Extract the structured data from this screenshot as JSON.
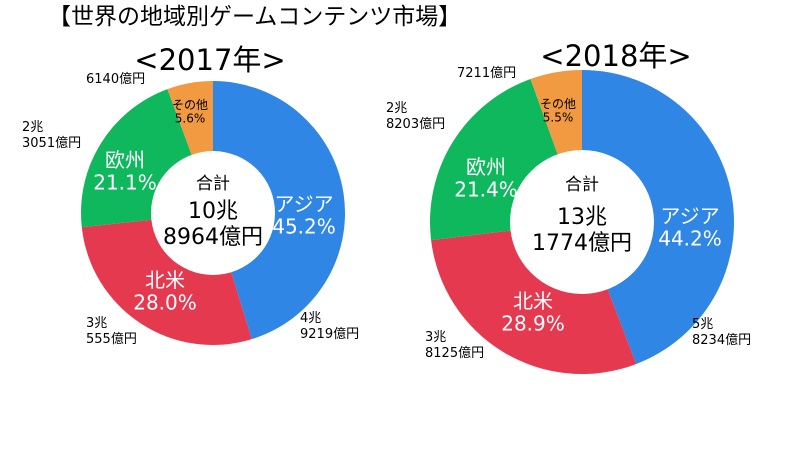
{
  "title": "【世界の地域別ゲームコンテンツ市場】",
  "colors": {
    "asia": "#2f86e4",
    "north_america": "#e53950",
    "europe": "#0fb85c",
    "other": "#f29a41",
    "hole": "#ffffff",
    "outer_label": "#000000",
    "inner_label": "#ffffff"
  },
  "chart_data": [
    {
      "type": "pie",
      "title": "<2017年>",
      "center_label": [
        "合計",
        "10兆",
        "8964億円"
      ],
      "slices": [
        {
          "key": "asia",
          "label": "アジア",
          "percent_label": "45.2%",
          "value": 45.2,
          "outer_label": [
            "4兆",
            "9219億円"
          ]
        },
        {
          "key": "north_america",
          "label": "北米",
          "percent_label": "28.0%",
          "value": 28.0,
          "outer_label": [
            "3兆",
            "555億円"
          ]
        },
        {
          "key": "europe",
          "label": "欧州",
          "percent_label": "21.1%",
          "value": 21.1,
          "outer_label": [
            "2兆",
            "3051億円"
          ]
        },
        {
          "key": "other",
          "label": "その他",
          "percent_label": "5.6%",
          "value": 5.6,
          "outer_label": [
            "6140億円"
          ]
        }
      ]
    },
    {
      "type": "pie",
      "title": "<2018年>",
      "center_label": [
        "合計",
        "13兆",
        "1774億円"
      ],
      "slices": [
        {
          "key": "asia",
          "label": "アジア",
          "percent_label": "44.2%",
          "value": 44.2,
          "outer_label": [
            "5兆",
            "8234億円"
          ]
        },
        {
          "key": "north_america",
          "label": "北米",
          "percent_label": "28.9%",
          "value": 28.9,
          "outer_label": [
            "3兆",
            "8125億円"
          ]
        },
        {
          "key": "europe",
          "label": "欧州",
          "percent_label": "21.4%",
          "value": 21.4,
          "outer_label": [
            "2兆",
            "8203億円"
          ]
        },
        {
          "key": "other",
          "label": "その他",
          "percent_label": "5.5%",
          "value": 5.5,
          "outer_label": [
            "7211億円"
          ]
        }
      ]
    }
  ]
}
